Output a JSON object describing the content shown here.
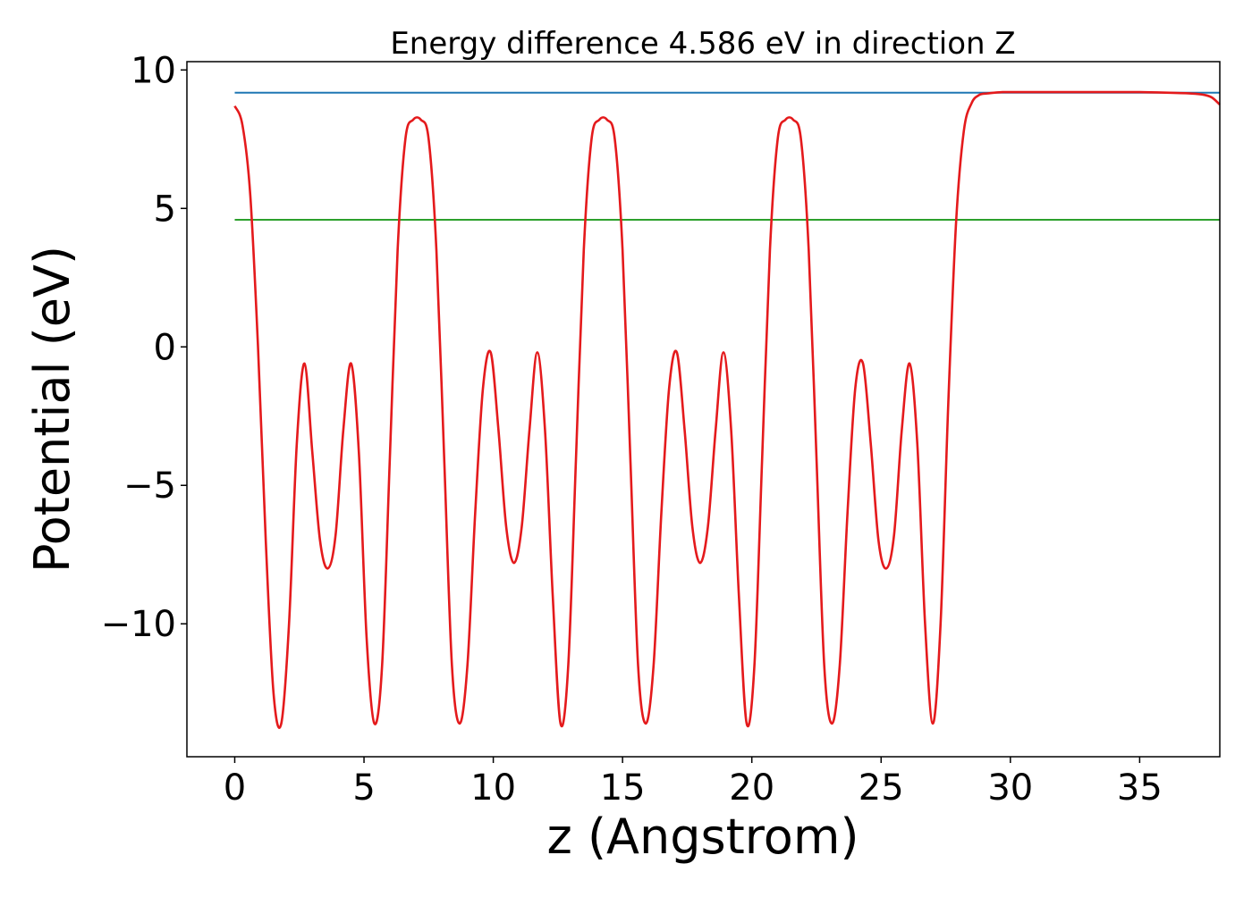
{
  "chart_data": {
    "type": "line",
    "title": "Energy difference 4.586 eV in direction Z",
    "xlabel": "z (Angstrom)",
    "ylabel": "Potential (eV)",
    "xlim": [
      -1.85,
      38.1
    ],
    "ylim": [
      -14.8,
      10.3
    ],
    "xticks": [
      0,
      5,
      10,
      15,
      20,
      25,
      30,
      35
    ],
    "xtick_labels": [
      "0",
      "5",
      "10",
      "15",
      "20",
      "25",
      "30",
      "35"
    ],
    "yticks": [
      10,
      5,
      0,
      -5,
      -10
    ],
    "ytick_labels": [
      "10",
      "5",
      "0",
      "−5",
      "−10"
    ],
    "grid": false,
    "colors": {
      "vacuum_level": "#1f77b4",
      "reference_level": "#2ca02c",
      "potential": "#e41a1c"
    },
    "series": [
      {
        "key": "vacuum_level",
        "x": [
          0,
          38.1
        ],
        "y": [
          9.18,
          9.18
        ]
      },
      {
        "key": "reference_level",
        "x": [
          0,
          38.1
        ],
        "y": [
          4.59,
          4.59
        ]
      },
      {
        "key": "potential",
        "x": [
          0,
          0.3,
          0.6,
          0.9,
          1.2,
          1.5,
          1.8,
          2.1,
          2.4,
          2.7,
          3.0,
          3.3,
          3.6,
          3.9,
          4.2,
          4.5,
          4.8,
          5.1,
          5.4,
          5.7,
          6.0,
          6.3,
          6.6,
          6.9,
          7.2,
          7.5,
          7.8,
          8.1,
          8.4,
          8.7,
          9.0,
          9.3,
          9.6,
          9.9,
          10.2,
          10.5,
          10.8,
          11.1,
          11.4,
          11.7,
          12.0,
          12.3,
          12.6,
          12.9,
          13.2,
          13.5,
          13.8,
          14.1,
          14.4,
          14.7,
          15.0,
          15.3,
          15.6,
          15.9,
          16.2,
          16.5,
          16.8,
          17.1,
          17.4,
          17.7,
          18.0,
          18.3,
          18.6,
          18.9,
          19.2,
          19.5,
          19.8,
          20.1,
          20.4,
          20.7,
          21.0,
          21.3,
          21.6,
          21.9,
          22.2,
          22.5,
          22.8,
          23.1,
          23.4,
          23.7,
          24.0,
          24.3,
          24.6,
          24.9,
          25.2,
          25.5,
          25.8,
          26.1,
          26.4,
          26.7,
          27.0,
          27.3,
          27.6,
          27.9,
          28.2,
          28.5,
          28.8,
          29.1,
          29.4,
          29.7,
          30.0,
          31.0,
          32.0,
          33.0,
          34.0,
          35.0,
          36.0,
          37.0,
          37.5,
          37.8,
          38.1
        ],
        "y": [
          8.7,
          8.0,
          5.5,
          0.0,
          -7.0,
          -12.5,
          -13.6,
          -10.0,
          -3.5,
          -0.6,
          -3.8,
          -7.0,
          -8.0,
          -6.8,
          -3.0,
          -0.6,
          -3.8,
          -10.5,
          -13.6,
          -11.5,
          -4.0,
          3.5,
          7.5,
          8.2,
          8.2,
          7.5,
          3.5,
          -4.0,
          -11.5,
          -13.6,
          -11.5,
          -6.0,
          -1.5,
          -0.2,
          -3.0,
          -6.5,
          -7.8,
          -6.5,
          -3.0,
          -0.2,
          -3.0,
          -9.0,
          -13.6,
          -11.5,
          -4.0,
          3.5,
          7.5,
          8.2,
          8.2,
          7.5,
          3.5,
          -4.0,
          -11.5,
          -13.6,
          -11.5,
          -6.0,
          -1.5,
          -0.2,
          -3.0,
          -6.5,
          -7.8,
          -6.5,
          -3.0,
          -0.2,
          -3.0,
          -9.0,
          -13.6,
          -11.5,
          -4.0,
          3.5,
          7.5,
          8.2,
          8.2,
          7.5,
          3.5,
          -4.0,
          -11.5,
          -13.6,
          -11.5,
          -6.0,
          -1.5,
          -0.6,
          -3.5,
          -7.0,
          -8.0,
          -6.8,
          -3.0,
          -0.6,
          -3.5,
          -10.0,
          -13.6,
          -10.0,
          -2.0,
          4.5,
          7.8,
          8.8,
          9.1,
          9.15,
          9.18,
          9.2,
          9.2,
          9.2,
          9.2,
          9.2,
          9.2,
          9.2,
          9.18,
          9.15,
          9.1,
          9.0,
          8.75
        ]
      }
    ]
  }
}
